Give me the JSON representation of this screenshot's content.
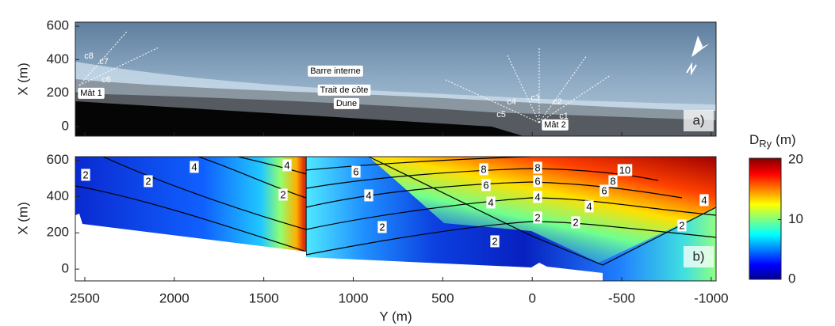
{
  "chart_data": [
    {
      "type": "image",
      "label": "a)",
      "ylabel": "X (m)",
      "ylim": [
        -57,
        624
      ],
      "yticks": [
        0,
        200,
        400,
        600
      ],
      "annotations": [
        "c8",
        "c7",
        "c6",
        "Mât 1",
        "Barre interne",
        "Trait de côte",
        "Dune",
        "c4",
        "c3",
        "c2",
        "c5",
        "c1",
        "Mât 2"
      ]
    },
    {
      "type": "heatmap",
      "label": "b)",
      "ylabel": "X (m)",
      "xlabel": "Y (m)",
      "xlim": [
        2553,
        -1027
      ],
      "xticks": [
        2500,
        2000,
        1500,
        1000,
        500,
        0,
        -500,
        -1000
      ],
      "ylim": [
        -65,
        620
      ],
      "yticks": [
        0,
        200,
        400,
        600
      ],
      "contour_labels": [
        2,
        2,
        4,
        4,
        2,
        6,
        4,
        2,
        8,
        6,
        4,
        2,
        8,
        6,
        4,
        2,
        10,
        8,
        6,
        4,
        2,
        2,
        4
      ],
      "colorbar": {
        "label": "D",
        "label_sub": "Ry",
        "label_unit": "(m)",
        "lim": [
          0,
          20
        ],
        "ticks": [
          0,
          10,
          20
        ]
      }
    }
  ]
}
